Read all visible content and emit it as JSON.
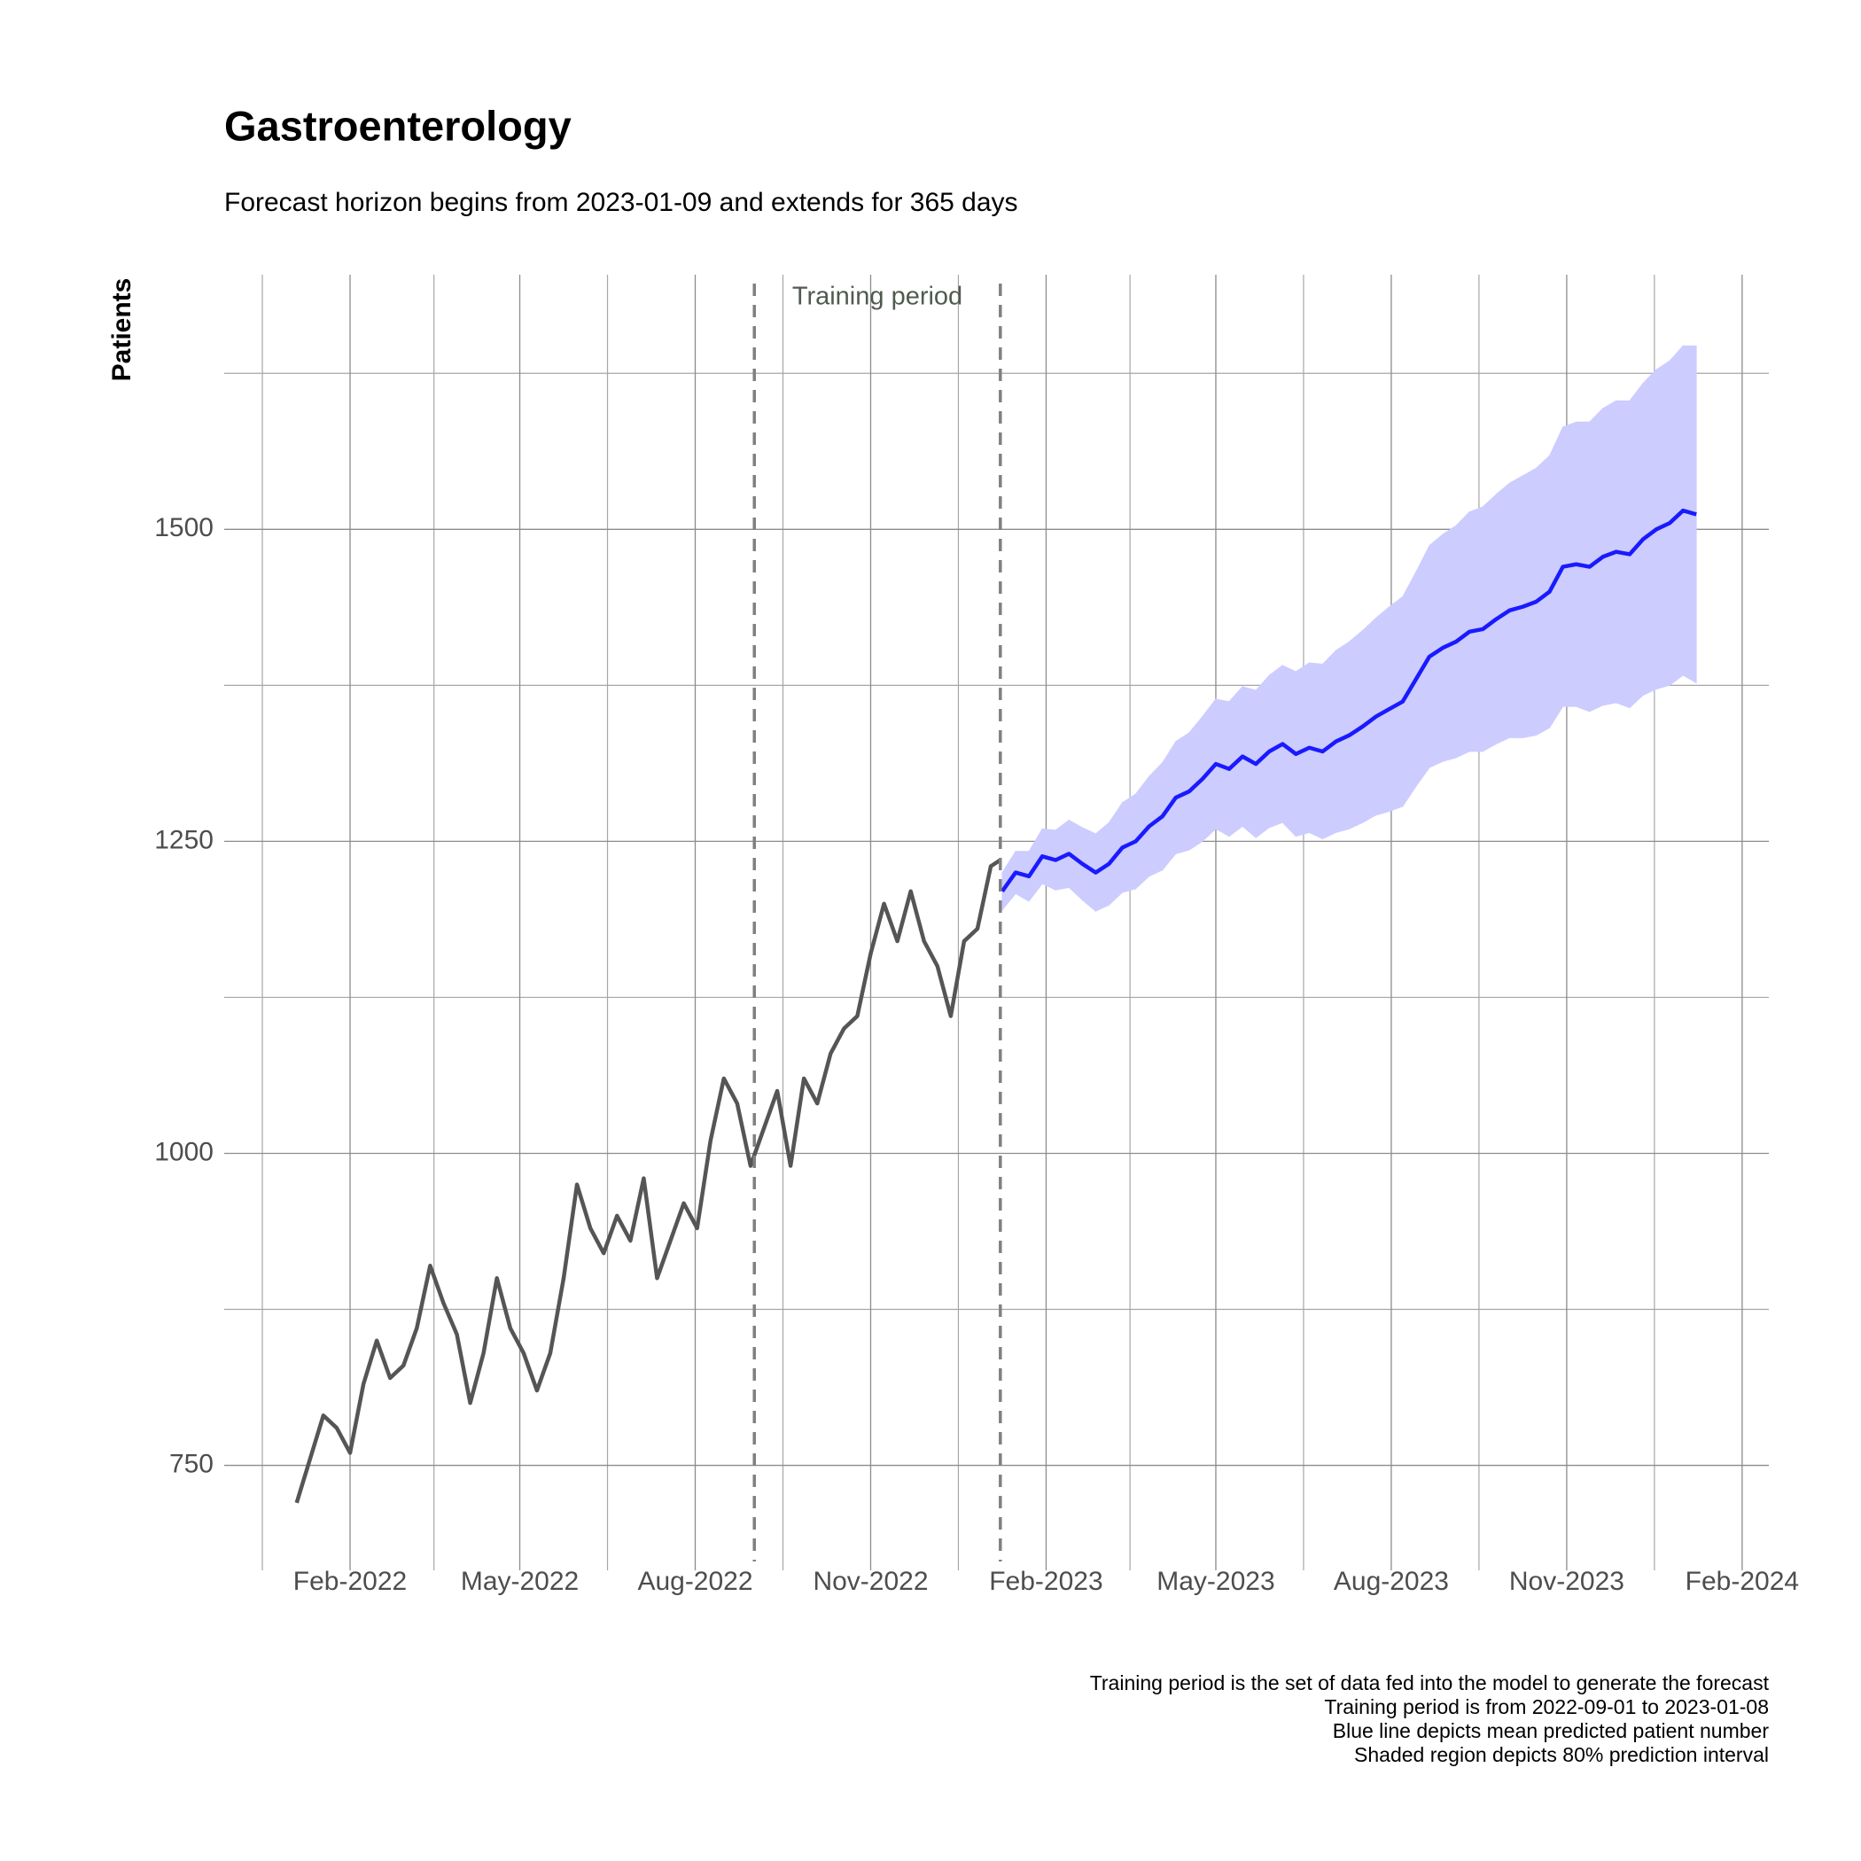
{
  "chart_data": {
    "type": "line",
    "title": "Gastroenterology",
    "subtitle": "Forecast horizon begins from 2023-01-09 and extends for 365 days",
    "ylabel": "Patients",
    "xlim": [
      "2021-11-27",
      "2024-02-15"
    ],
    "xticks": [
      {
        "value": "2022-02-01",
        "label": "Feb-2022"
      },
      {
        "value": "2022-05-01",
        "label": "May-2022"
      },
      {
        "value": "2022-08-01",
        "label": "Aug-2022"
      },
      {
        "value": "2022-11-01",
        "label": "Nov-2022"
      },
      {
        "value": "2023-02-01",
        "label": "Feb-2023"
      },
      {
        "value": "2023-05-01",
        "label": "May-2023"
      },
      {
        "value": "2023-08-01",
        "label": "Aug-2023"
      },
      {
        "value": "2023-11-01",
        "label": "Nov-2023"
      },
      {
        "value": "2024-02-01",
        "label": "Feb-2024"
      }
    ],
    "x_minor_ticks": [
      "2021-12-17",
      "2022-03-17",
      "2022-06-16",
      "2022-09-16",
      "2022-12-17",
      "2023-03-17",
      "2023-06-16",
      "2023-09-16",
      "2023-12-17"
    ],
    "ylim": [
      673,
      1704
    ],
    "yticks": [
      750,
      1000,
      1250,
      1500
    ],
    "y_minor_ticks": [
      875,
      1125,
      1375,
      1625
    ],
    "grid": true,
    "vlines": [
      "2022-09-01",
      "2023-01-08"
    ],
    "annotation": "Training period",
    "caption": [
      "Training period is the set of data fed into the model to generate the forecast",
      "Training period is from 2022-09-01 to 2023-01-08",
      "Blue line depicts mean predicted patient number",
      "Shaded region depicts 80% prediction interval"
    ],
    "series": [
      {
        "color": "#555555",
        "x": [
          "2022-01-04",
          "2022-01-11",
          "2022-01-18",
          "2022-01-25",
          "2022-02-01",
          "2022-02-08",
          "2022-02-15",
          "2022-02-22",
          "2022-03-01",
          "2022-03-08",
          "2022-03-15",
          "2022-03-22",
          "2022-03-29",
          "2022-04-05",
          "2022-04-12",
          "2022-04-19",
          "2022-04-26",
          "2022-05-03",
          "2022-05-10",
          "2022-05-17",
          "2022-05-24",
          "2022-05-31",
          "2022-06-07",
          "2022-06-14",
          "2022-06-21",
          "2022-06-28",
          "2022-07-05",
          "2022-07-12",
          "2022-07-19",
          "2022-07-26",
          "2022-08-02",
          "2022-08-09",
          "2022-08-16",
          "2022-08-23",
          "2022-08-30",
          "2022-09-06",
          "2022-09-13",
          "2022-09-20",
          "2022-09-27",
          "2022-10-04",
          "2022-10-11",
          "2022-10-18",
          "2022-10-25",
          "2022-11-01",
          "2022-11-08",
          "2022-11-15",
          "2022-11-22",
          "2022-11-29",
          "2022-12-06",
          "2022-12-13",
          "2022-12-20",
          "2022-12-27",
          "2023-01-03",
          "2023-01-08"
        ],
        "values": [
          720,
          755,
          790,
          780,
          760,
          815,
          850,
          820,
          830,
          860,
          910,
          880,
          855,
          800,
          840,
          900,
          860,
          840,
          810,
          840,
          900,
          975,
          940,
          920,
          950,
          930,
          980,
          900,
          930,
          960,
          940,
          1010,
          1060,
          1040,
          990,
          1020,
          1050,
          990,
          1060,
          1040,
          1080,
          1100,
          1110,
          1160,
          1200,
          1170,
          1210,
          1170,
          1150,
          1110,
          1170,
          1180,
          1230,
          1235
        ]
      },
      {
        "color": "#1a1aff",
        "band_color": "#ccccff",
        "x": [
          "2023-01-09",
          "2023-01-16",
          "2023-01-23",
          "2023-01-30",
          "2023-02-06",
          "2023-02-13",
          "2023-02-20",
          "2023-02-27",
          "2023-03-06",
          "2023-03-13",
          "2023-03-20",
          "2023-03-27",
          "2023-04-03",
          "2023-04-10",
          "2023-04-17",
          "2023-04-24",
          "2023-05-01",
          "2023-05-08",
          "2023-05-15",
          "2023-05-22",
          "2023-05-29",
          "2023-06-05",
          "2023-06-12",
          "2023-06-19",
          "2023-06-26",
          "2023-07-03",
          "2023-07-10",
          "2023-07-17",
          "2023-07-24",
          "2023-07-31",
          "2023-08-07",
          "2023-08-14",
          "2023-08-21",
          "2023-08-28",
          "2023-09-04",
          "2023-09-11",
          "2023-09-18",
          "2023-09-25",
          "2023-10-02",
          "2023-10-09",
          "2023-10-16",
          "2023-10-23",
          "2023-10-30",
          "2023-11-06",
          "2023-11-13",
          "2023-11-20",
          "2023-11-27",
          "2023-12-04",
          "2023-12-11",
          "2023-12-18",
          "2023-12-25",
          "2024-01-01",
          "2024-01-08"
        ],
        "values": [
          1210,
          1225,
          1222,
          1238,
          1235,
          1240,
          1232,
          1225,
          1232,
          1245,
          1250,
          1262,
          1270,
          1285,
          1290,
          1300,
          1312,
          1308,
          1318,
          1312,
          1322,
          1328,
          1320,
          1325,
          1322,
          1330,
          1335,
          1342,
          1350,
          1356,
          1362,
          1380,
          1398,
          1405,
          1410,
          1418,
          1420,
          1428,
          1435,
          1438,
          1442,
          1450,
          1470,
          1472,
          1470,
          1478,
          1482,
          1480,
          1492,
          1500,
          1505,
          1515,
          1512
        ],
        "lower": [
          1195,
          1208,
          1202,
          1216,
          1211,
          1213,
          1203,
          1194,
          1199,
          1209,
          1212,
          1222,
          1227,
          1240,
          1243,
          1250,
          1260,
          1254,
          1262,
          1253,
          1261,
          1265,
          1254,
          1257,
          1252,
          1257,
          1260,
          1265,
          1271,
          1274,
          1278,
          1294,
          1309,
          1314,
          1317,
          1322,
          1322,
          1328,
          1333,
          1333,
          1335,
          1341,
          1358,
          1358,
          1354,
          1359,
          1361,
          1357,
          1367,
          1372,
          1375,
          1383,
          1377
        ],
        "upper": [
          1225,
          1242,
          1242,
          1260,
          1259,
          1267,
          1261,
          1256,
          1265,
          1281,
          1288,
          1302,
          1313,
          1330,
          1337,
          1350,
          1364,
          1362,
          1374,
          1371,
          1383,
          1391,
          1386,
          1393,
          1392,
          1403,
          1410,
          1419,
          1429,
          1438,
          1446,
          1466,
          1487,
          1496,
          1503,
          1514,
          1518,
          1528,
          1537,
          1543,
          1549,
          1559,
          1582,
          1586,
          1586,
          1597,
          1603,
          1603,
          1617,
          1628,
          1635,
          1647,
          1647
        ]
      }
    ]
  }
}
